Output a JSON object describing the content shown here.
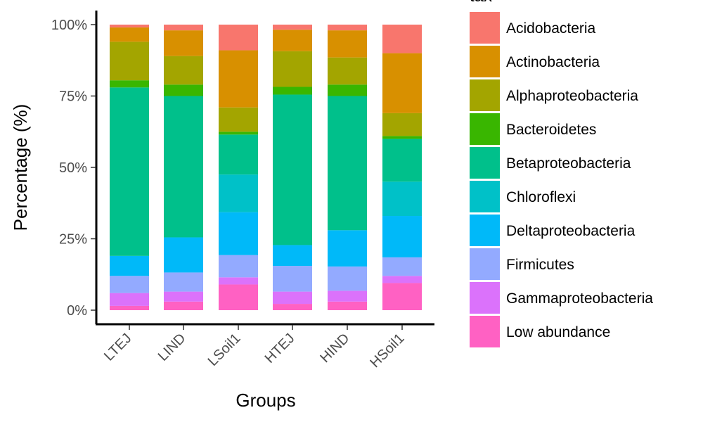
{
  "chart_data": {
    "type": "bar",
    "stacked": true,
    "xlabel": "Groups",
    "ylabel": "Percentage (%)",
    "ylim": [
      0,
      1
    ],
    "y_ticks": [
      "0%",
      "25%",
      "50%",
      "75%",
      "100%"
    ],
    "y_tick_values": [
      0,
      0.25,
      0.5,
      0.75,
      1.0
    ],
    "grid": false,
    "legend_title": "tax",
    "legend_position": "right",
    "categories": [
      "LTEJ",
      "LIND",
      "LSoil1",
      "HTEJ",
      "HIND",
      "HSoil1"
    ],
    "series": [
      {
        "name": "Low abundance",
        "color": "#FF61C3",
        "values": [
          0.015,
          0.03,
          0.09,
          0.022,
          0.03,
          0.095
        ]
      },
      {
        "name": "Gammaproteobacteria",
        "color": "#DB72FB",
        "values": [
          0.045,
          0.035,
          0.025,
          0.043,
          0.038,
          0.025
        ]
      },
      {
        "name": "Firmicutes",
        "color": "#93AAFF",
        "values": [
          0.06,
          0.067,
          0.078,
          0.09,
          0.085,
          0.065
        ]
      },
      {
        "name": "Deltaproteobacteria",
        "color": "#00B9F9",
        "values": [
          0.07,
          0.123,
          0.15,
          0.073,
          0.127,
          0.145
        ]
      },
      {
        "name": "Chloroflexi",
        "color": "#00C1C8",
        "values": [
          0.0,
          0.0,
          0.132,
          0.0,
          0.0,
          0.12
        ]
      },
      {
        "name": "Betaproteobacteria",
        "color": "#00C08B",
        "values": [
          0.59,
          0.495,
          0.14,
          0.527,
          0.47,
          0.15
        ]
      },
      {
        "name": "Bacteroidetes",
        "color": "#39B600",
        "values": [
          0.025,
          0.04,
          0.01,
          0.027,
          0.04,
          0.01
        ]
      },
      {
        "name": "Alphaproteobacteria",
        "color": "#A3A500",
        "values": [
          0.135,
          0.1,
          0.085,
          0.125,
          0.095,
          0.08
        ]
      },
      {
        "name": "Actinobacteria",
        "color": "#D89000",
        "values": [
          0.05,
          0.09,
          0.2,
          0.075,
          0.095,
          0.21
        ]
      },
      {
        "name": "Acidobacteria",
        "color": "#F8766D",
        "values": [
          0.01,
          0.02,
          0.09,
          0.018,
          0.02,
          0.1
        ]
      }
    ],
    "legend_order": [
      "Acidobacteria",
      "Actinobacteria",
      "Alphaproteobacteria",
      "Bacteroidetes",
      "Betaproteobacteria",
      "Chloroflexi",
      "Deltaproteobacteria",
      "Firmicutes",
      "Gammaproteobacteria",
      "Low abundance"
    ]
  }
}
